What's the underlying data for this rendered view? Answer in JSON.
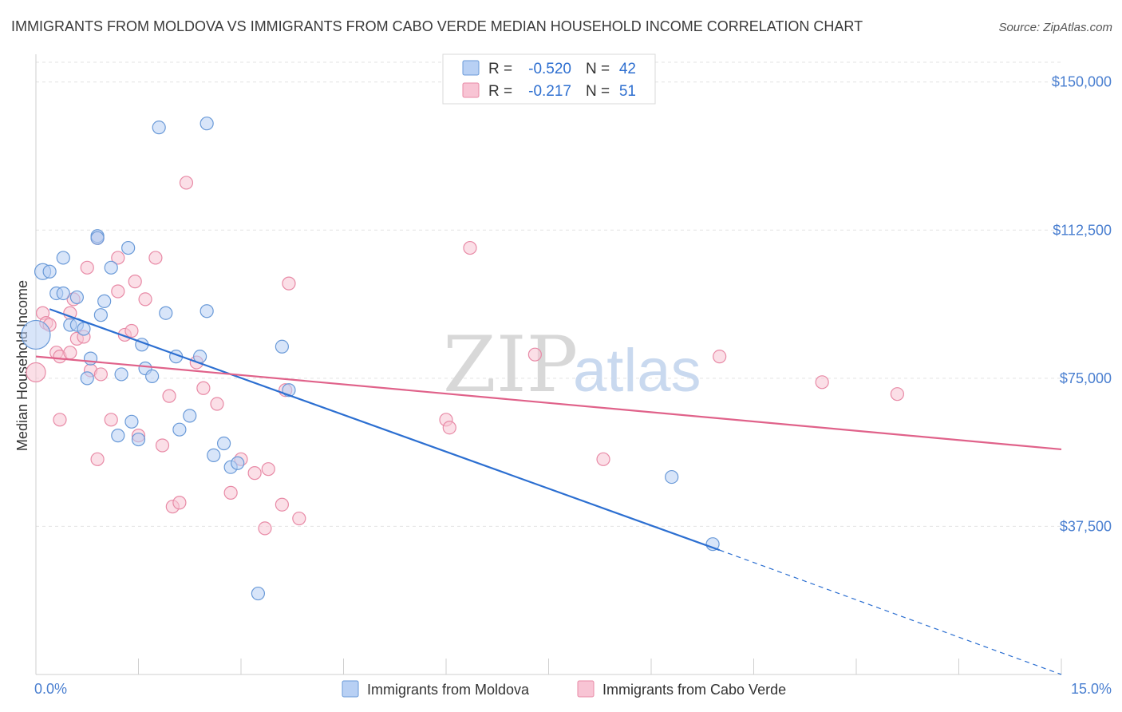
{
  "title": "IMMIGRANTS FROM MOLDOVA VS IMMIGRANTS FROM CABO VERDE MEDIAN HOUSEHOLD INCOME CORRELATION CHART",
  "source": "Source: ZipAtlas.com",
  "watermark": {
    "zip": "ZIP",
    "atlas": "atlas"
  },
  "colors": {
    "moldova_fill": "#b8d0f4",
    "moldova_stroke": "#6a9ad8",
    "moldova_line": "#2c6fd1",
    "caboverde_fill": "#f8c4d4",
    "caboverde_stroke": "#e88aa6",
    "caboverde_line": "#e0628a",
    "tick_text": "#4a7fd0",
    "grid": "#e3e3e3"
  },
  "legend": {
    "rows": [
      {
        "r_label": "R =",
        "r_value": "-0.520",
        "n_label": "N =",
        "n_value": "42"
      },
      {
        "r_label": "R =",
        "r_value": "-0.217",
        "n_label": "N =",
        "n_value": "51"
      }
    ]
  },
  "chart_data": {
    "type": "scatter",
    "title": "IMMIGRANTS FROM MOLDOVA VS IMMIGRANTS FROM CABO VERDE MEDIAN HOUSEHOLD INCOME CORRELATION CHART",
    "ylabel": "Median Household Income",
    "xlabel": "",
    "xlim": [
      0,
      15
    ],
    "ylim": [
      0,
      155000
    ],
    "x_tick_labels": [
      "0.0%",
      "15.0%"
    ],
    "y_ticks": [
      37500,
      75000,
      112500,
      150000
    ],
    "y_tick_labels": [
      "$37,500",
      "$75,000",
      "$112,500",
      "$150,000"
    ],
    "grid": true,
    "legend_position": "top-center",
    "series": [
      {
        "name": "Immigrants from Moldova",
        "r": -0.52,
        "n": 42,
        "trend": {
          "x0": 0.2,
          "y0": 92500,
          "x1": 10.0,
          "y1": 31500,
          "dashed_to_x": 15.0,
          "dashed_to_y": 0
        },
        "points": [
          [
            0.0,
            86000,
            18
          ],
          [
            0.1,
            102000,
            10
          ],
          [
            0.2,
            102000,
            8
          ],
          [
            0.3,
            96500,
            8
          ],
          [
            0.4,
            96500,
            8
          ],
          [
            0.4,
            105500,
            8
          ],
          [
            0.5,
            88500,
            8
          ],
          [
            0.6,
            95500,
            8
          ],
          [
            0.6,
            88500,
            8
          ],
          [
            0.7,
            87500,
            8
          ],
          [
            0.75,
            75000,
            8
          ],
          [
            0.8,
            80000,
            8
          ],
          [
            0.9,
            111000,
            8
          ],
          [
            0.95,
            91000,
            8
          ],
          [
            1.0,
            94500,
            8
          ],
          [
            1.1,
            103000,
            8
          ],
          [
            1.2,
            60500,
            8
          ],
          [
            1.25,
            76000,
            8
          ],
          [
            1.35,
            108000,
            8
          ],
          [
            1.4,
            64000,
            8
          ],
          [
            1.5,
            59500,
            8
          ],
          [
            1.55,
            83500,
            8
          ],
          [
            1.6,
            77500,
            8
          ],
          [
            1.7,
            75500,
            8
          ],
          [
            1.8,
            138500,
            8
          ],
          [
            1.9,
            91500,
            8
          ],
          [
            2.05,
            80500,
            8
          ],
          [
            2.1,
            62000,
            8
          ],
          [
            2.25,
            65500,
            8
          ],
          [
            2.4,
            80500,
            8
          ],
          [
            2.5,
            92000,
            8
          ],
          [
            2.5,
            139500,
            8
          ],
          [
            2.6,
            55500,
            8
          ],
          [
            2.75,
            58500,
            8
          ],
          [
            2.85,
            52500,
            8
          ],
          [
            2.95,
            53500,
            8
          ],
          [
            3.25,
            20500,
            8
          ],
          [
            3.6,
            83000,
            8
          ],
          [
            3.7,
            72000,
            8
          ],
          [
            9.3,
            50000,
            8
          ],
          [
            9.9,
            33000,
            8
          ],
          [
            0.9,
            110500,
            8
          ]
        ]
      },
      {
        "name": "Immigrants from Cabo Verde",
        "r": -0.217,
        "n": 51,
        "trend": {
          "x0": 0.0,
          "y0": 80500,
          "x1": 15.0,
          "y1": 57000
        },
        "points": [
          [
            0.0,
            76500,
            12
          ],
          [
            0.1,
            91500,
            8
          ],
          [
            0.15,
            89000,
            8
          ],
          [
            0.2,
            88500,
            8
          ],
          [
            0.3,
            81500,
            8
          ],
          [
            0.35,
            64500,
            8
          ],
          [
            0.35,
            80500,
            8
          ],
          [
            0.5,
            81500,
            8
          ],
          [
            0.5,
            91500,
            8
          ],
          [
            0.55,
            95000,
            8
          ],
          [
            0.6,
            85000,
            8
          ],
          [
            0.7,
            85500,
            8
          ],
          [
            0.75,
            103000,
            8
          ],
          [
            0.8,
            77000,
            8
          ],
          [
            0.9,
            110500,
            8
          ],
          [
            0.9,
            54500,
            8
          ],
          [
            0.95,
            76000,
            8
          ],
          [
            1.1,
            64500,
            8
          ],
          [
            1.2,
            105500,
            8
          ],
          [
            1.2,
            97000,
            8
          ],
          [
            1.3,
            86000,
            8
          ],
          [
            1.4,
            87000,
            8
          ],
          [
            1.45,
            99500,
            8
          ],
          [
            1.5,
            60500,
            8
          ],
          [
            1.6,
            95000,
            8
          ],
          [
            1.75,
            105500,
            8
          ],
          [
            1.85,
            58000,
            8
          ],
          [
            1.95,
            70500,
            8
          ],
          [
            2.0,
            42500,
            8
          ],
          [
            2.1,
            43500,
            8
          ],
          [
            2.2,
            124500,
            8
          ],
          [
            2.35,
            79000,
            8
          ],
          [
            2.45,
            72500,
            8
          ],
          [
            2.65,
            68500,
            8
          ],
          [
            2.85,
            46000,
            8
          ],
          [
            3.0,
            54500,
            8
          ],
          [
            3.2,
            51000,
            8
          ],
          [
            3.35,
            37000,
            8
          ],
          [
            3.4,
            52000,
            8
          ],
          [
            3.6,
            43000,
            8
          ],
          [
            3.65,
            72000,
            8
          ],
          [
            3.7,
            99000,
            8
          ],
          [
            3.85,
            39500,
            8
          ],
          [
            6.0,
            64500,
            8
          ],
          [
            6.05,
            62500,
            8
          ],
          [
            6.35,
            108000,
            8
          ],
          [
            7.3,
            81000,
            8
          ],
          [
            8.3,
            54500,
            8
          ],
          [
            10.0,
            80500,
            8
          ],
          [
            11.5,
            74000,
            8
          ],
          [
            12.6,
            71000,
            8
          ]
        ]
      }
    ]
  }
}
